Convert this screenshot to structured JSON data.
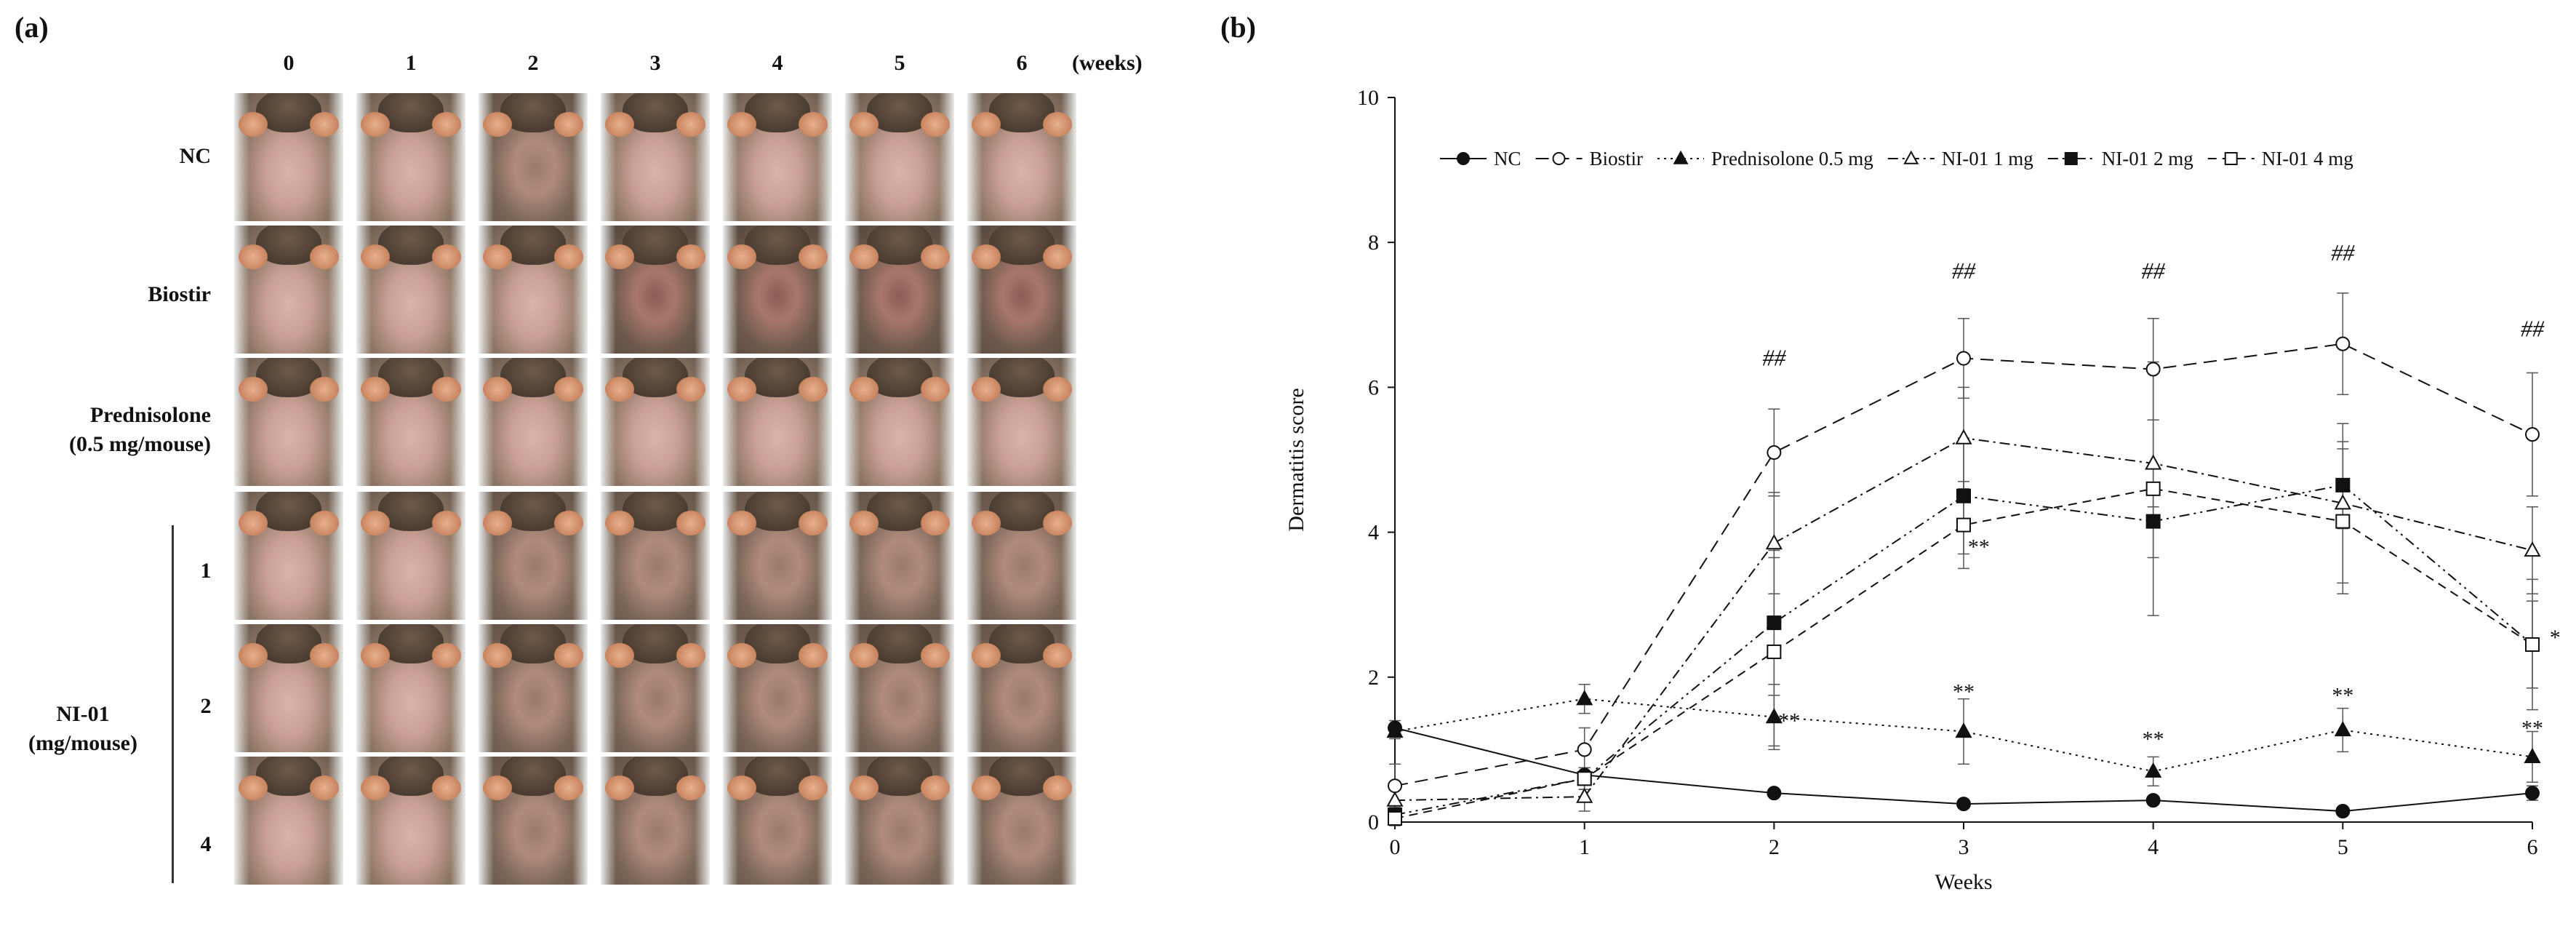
{
  "panel_a": {
    "label": "(a)",
    "week_unit": "(weeks)",
    "weeks": [
      "0",
      "1",
      "2",
      "3",
      "4",
      "5",
      "6"
    ],
    "groups": {
      "nc": "NC",
      "biostir": "Biostir",
      "pred_line1": "Prednisolone",
      "pred_line2": "(0.5 mg/mouse)",
      "ni_line1": "NI-01",
      "ni_line2": "(mg/mouse)",
      "dose1": "1",
      "dose2": "2",
      "dose4": "4"
    },
    "photo_rows": [
      "NC",
      "Biostir",
      "Prednisolone (0.5 mg/mouse)",
      "NI-01 1",
      "NI-01 2",
      "NI-01 4"
    ]
  },
  "panel_b": {
    "label": "(b)"
  },
  "chart_data": {
    "type": "line",
    "title": "",
    "xlabel": "Weeks",
    "ylabel": "Dermatitis score",
    "x": [
      0,
      1,
      2,
      3,
      4,
      5,
      6
    ],
    "xlim": [
      0,
      6
    ],
    "ylim": [
      0,
      10
    ],
    "yticks": [
      0,
      2,
      4,
      6,
      8,
      10
    ],
    "xticks": [
      0,
      1,
      2,
      3,
      4,
      5,
      6
    ],
    "legend_position": "top",
    "series": [
      {
        "name": "NC",
        "marker": "filled-circle",
        "dash": "solid",
        "values": [
          1.3,
          0.65,
          0.4,
          0.25,
          0.3,
          0.15,
          0.4
        ],
        "errors": [
          0.1,
          0.1,
          0.05,
          0.05,
          0.05,
          0.05,
          0.1
        ]
      },
      {
        "name": "Biostir",
        "marker": "open-circle",
        "dash": "long-dash",
        "values": [
          0.5,
          1.0,
          5.1,
          6.4,
          6.25,
          6.6,
          5.35
        ],
        "errors": [
          0.3,
          0.3,
          0.6,
          0.55,
          0.7,
          0.7,
          0.85
        ]
      },
      {
        "name": "Prednisolone 0.5 mg",
        "marker": "filled-triangle",
        "dash": "dotted",
        "values": [
          1.25,
          1.7,
          1.45,
          1.25,
          0.7,
          1.27,
          0.9
        ],
        "errors": [
          0.1,
          0.2,
          0.45,
          0.45,
          0.2,
          0.3,
          0.35
        ]
      },
      {
        "name": "NI-01 1 mg",
        "marker": "open-triangle",
        "dash": "dash-dot",
        "values": [
          0.3,
          0.35,
          3.85,
          5.3,
          4.95,
          4.4,
          3.75
        ],
        "errors": [
          0.2,
          0.2,
          0.7,
          0.7,
          0.6,
          1.1,
          0.6
        ]
      },
      {
        "name": "NI-01 2 mg",
        "marker": "filled-square",
        "dash": "dash-dot-dot",
        "values": [
          0.1,
          0.6,
          2.75,
          4.5,
          4.15,
          4.65,
          2.45
        ],
        "errors": [
          0.1,
          0.15,
          1.0,
          0.8,
          0.5,
          0.6,
          0.6
        ]
      },
      {
        "name": "NI-01 4 mg",
        "marker": "open-square",
        "dash": "medium-dash",
        "values": [
          0.05,
          0.6,
          2.35,
          4.1,
          4.6,
          4.15,
          2.45
        ],
        "errors": [
          0.1,
          0.15,
          1.3,
          0.6,
          1.75,
          1.0,
          0.9
        ]
      }
    ],
    "annotations": [
      {
        "x": 2,
        "y": 6.3,
        "text": "##"
      },
      {
        "x": 3,
        "y": 7.5,
        "text": "##"
      },
      {
        "x": 4,
        "y": 7.5,
        "text": "##"
      },
      {
        "x": 5,
        "y": 7.75,
        "text": "##"
      },
      {
        "x": 6,
        "y": 6.7,
        "text": "##"
      },
      {
        "x": 3.08,
        "y": 3.7,
        "text": "**"
      },
      {
        "x": 2.08,
        "y": 1.3,
        "text": "**"
      },
      {
        "x": 3,
        "y": 1.7,
        "text": "**"
      },
      {
        "x": 4,
        "y": 1.05,
        "text": "**"
      },
      {
        "x": 5,
        "y": 1.65,
        "text": "**"
      },
      {
        "x": 6,
        "y": 1.2,
        "text": "**"
      },
      {
        "x": 6.12,
        "y": 2.45,
        "text": "*"
      }
    ]
  }
}
